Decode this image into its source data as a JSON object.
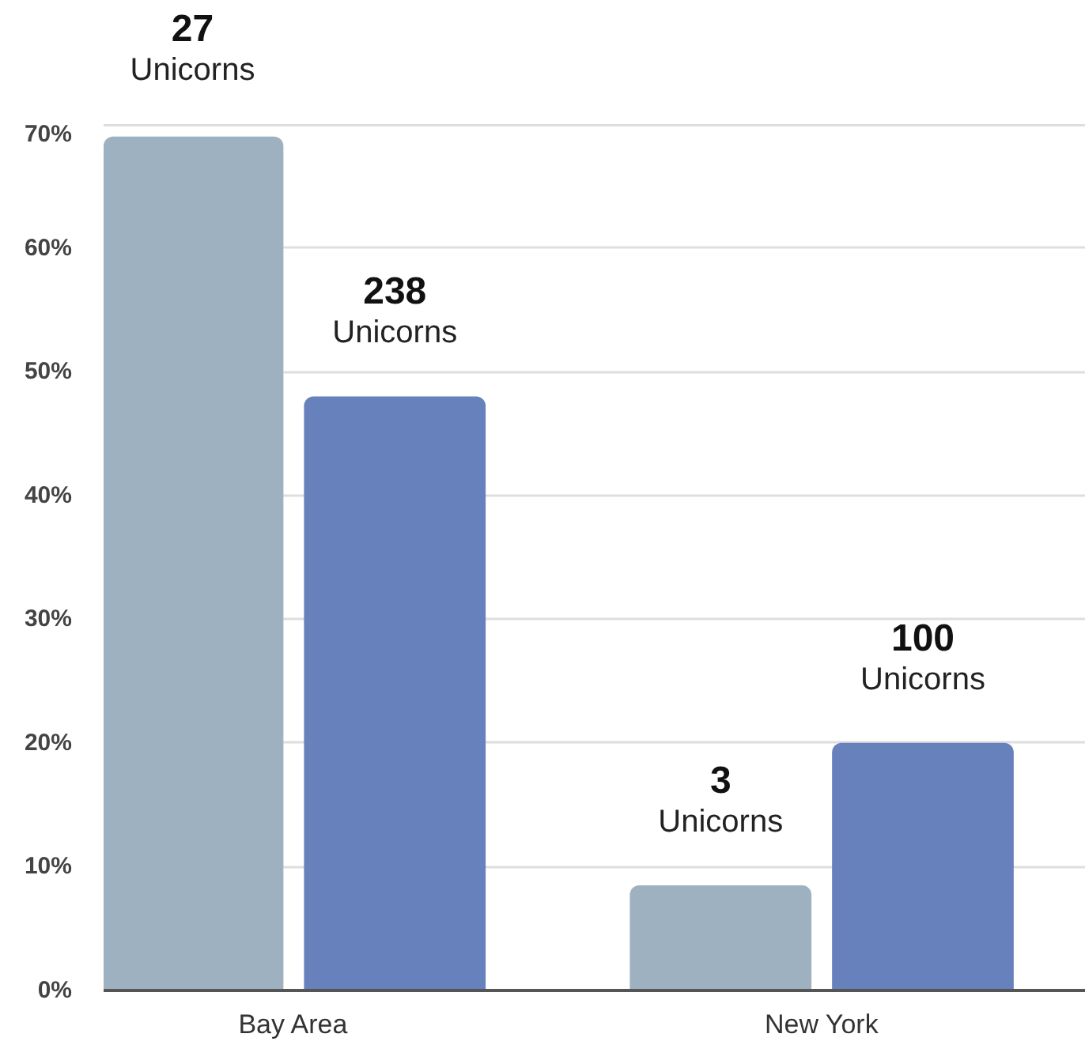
{
  "chart_data": {
    "type": "bar",
    "categories": [
      "Bay Area",
      "New York"
    ],
    "series": [
      {
        "color": "#9db1c0",
        "values": [
          69,
          8.5
        ]
      },
      {
        "color": "#6781bc",
        "values": [
          48,
          20
        ]
      }
    ],
    "ylim": [
      0,
      70
    ],
    "yticks": [
      {
        "value": 0,
        "label": "0%"
      },
      {
        "value": 10,
        "label": "10%"
      },
      {
        "value": 20,
        "label": "20%"
      },
      {
        "value": 30,
        "label": "30%"
      },
      {
        "value": 40,
        "label": "40%"
      },
      {
        "value": 50,
        "label": "50%"
      },
      {
        "value": 60,
        "label": "60%"
      },
      {
        "value": 70,
        "label": "70%"
      }
    ],
    "annotations": [
      "27\nUnicorns",
      "238\nUnicorns",
      "3\nUnicorns",
      "100\nUnicorns"
    ],
    "grid": "y"
  }
}
